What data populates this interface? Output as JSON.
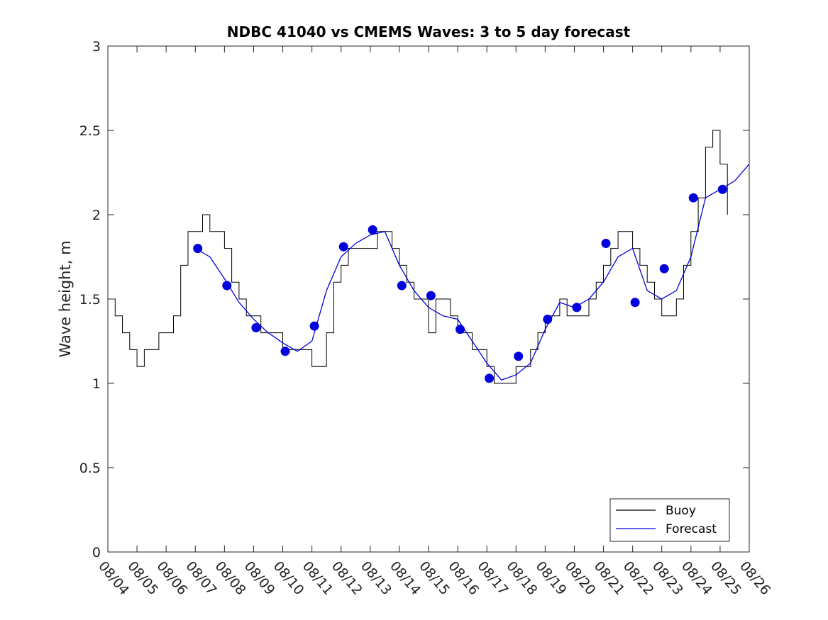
{
  "chart_data": {
    "type": "line",
    "title": "NDBC 41040 vs CMEMS Waves: 3 to 5 day forecast",
    "xlabel": "",
    "ylabel": "Wave height, m",
    "x_axis": {
      "type": "date",
      "range": [
        "08/04",
        "08/26"
      ],
      "tick_labels": [
        "08/04",
        "08/05",
        "08/06",
        "08/07",
        "08/08",
        "08/09",
        "08/10",
        "08/11",
        "08/12",
        "08/13",
        "08/14",
        "08/15",
        "08/16",
        "08/17",
        "08/18",
        "08/19",
        "08/20",
        "08/21",
        "08/22",
        "08/23",
        "08/24",
        "08/25",
        "08/26"
      ]
    },
    "y_axis": {
      "range": [
        0,
        3
      ],
      "ticks": [
        0,
        0.5,
        1,
        1.5,
        2,
        2.5,
        3
      ],
      "tick_labels": [
        "0",
        "0.5",
        "1",
        "1.5",
        "2",
        "2.5",
        "3"
      ]
    },
    "grid": false,
    "legend": {
      "placement": "bottom-right",
      "entries": [
        "Buoy",
        "Forecast"
      ]
    },
    "colors": {
      "Buoy": "#000000",
      "Forecast": "#0000dd"
    },
    "series": [
      {
        "name": "Buoy",
        "style": "step",
        "x": [
          "08/04 00:00",
          "08/04 06:00",
          "08/04 12:00",
          "08/04 18:00",
          "08/05 00:00",
          "08/05 06:00",
          "08/05 12:00",
          "08/05 18:00",
          "08/06 00:00",
          "08/06 06:00",
          "08/06 12:00",
          "08/06 18:00",
          "08/07 00:00",
          "08/07 06:00",
          "08/07 12:00",
          "08/07 18:00",
          "08/08 00:00",
          "08/08 06:00",
          "08/08 12:00",
          "08/08 18:00",
          "08/09 00:00",
          "08/09 06:00",
          "08/09 12:00",
          "08/09 18:00",
          "08/10 00:00",
          "08/10 06:00",
          "08/10 12:00",
          "08/10 18:00",
          "08/11 00:00",
          "08/11 06:00",
          "08/11 12:00",
          "08/11 18:00",
          "08/12 00:00",
          "08/12 06:00",
          "08/12 12:00",
          "08/12 18:00",
          "08/13 00:00",
          "08/13 06:00",
          "08/13 12:00",
          "08/13 18:00",
          "08/14 00:00",
          "08/14 06:00",
          "08/14 12:00",
          "08/14 18:00",
          "08/15 00:00",
          "08/15 06:00",
          "08/15 12:00",
          "08/15 18:00",
          "08/16 00:00",
          "08/16 06:00",
          "08/16 12:00",
          "08/16 18:00",
          "08/17 00:00",
          "08/17 06:00",
          "08/17 12:00",
          "08/17 18:00",
          "08/18 00:00",
          "08/18 06:00",
          "08/18 12:00",
          "08/18 18:00",
          "08/19 00:00",
          "08/19 06:00",
          "08/19 12:00",
          "08/19 18:00",
          "08/20 00:00",
          "08/20 06:00",
          "08/20 12:00",
          "08/20 18:00",
          "08/21 00:00",
          "08/21 06:00",
          "08/21 12:00",
          "08/21 18:00",
          "08/22 00:00",
          "08/22 06:00",
          "08/22 12:00",
          "08/22 18:00",
          "08/23 00:00",
          "08/23 06:00",
          "08/23 12:00",
          "08/23 18:00",
          "08/24 00:00",
          "08/24 06:00",
          "08/24 12:00",
          "08/24 18:00",
          "08/25 00:00",
          "08/25 06:00"
        ],
        "y": [
          1.5,
          1.4,
          1.3,
          1.2,
          1.1,
          1.2,
          1.2,
          1.3,
          1.3,
          1.4,
          1.7,
          1.9,
          1.9,
          2.0,
          1.9,
          1.9,
          1.8,
          1.6,
          1.5,
          1.4,
          1.4,
          1.3,
          1.3,
          1.3,
          1.2,
          1.2,
          1.2,
          1.2,
          1.1,
          1.1,
          1.3,
          1.6,
          1.7,
          1.8,
          1.8,
          1.8,
          1.8,
          1.9,
          1.9,
          1.8,
          1.7,
          1.6,
          1.5,
          1.5,
          1.3,
          1.5,
          1.5,
          1.4,
          1.3,
          1.3,
          1.2,
          1.2,
          1.1,
          1.0,
          1.0,
          1.0,
          1.1,
          1.1,
          1.2,
          1.3,
          1.4,
          1.4,
          1.5,
          1.4,
          1.4,
          1.4,
          1.5,
          1.6,
          1.7,
          1.8,
          1.9,
          1.9,
          1.8,
          1.7,
          1.6,
          1.5,
          1.4,
          1.4,
          1.5,
          1.7,
          1.9,
          2.1,
          2.4,
          2.5,
          2.3,
          2.0
        ]
      },
      {
        "name": "Forecast",
        "style": "line",
        "x": [
          "08/07 00:00",
          "08/07 12:00",
          "08/08 00:00",
          "08/08 12:00",
          "08/09 00:00",
          "08/09 12:00",
          "08/10 00:00",
          "08/10 12:00",
          "08/11 00:00",
          "08/11 12:00",
          "08/12 00:00",
          "08/12 12:00",
          "08/13 00:00",
          "08/13 12:00",
          "08/14 00:00",
          "08/14 12:00",
          "08/15 00:00",
          "08/15 12:00",
          "08/16 00:00",
          "08/16 12:00",
          "08/17 00:00",
          "08/17 12:00",
          "08/18 00:00",
          "08/18 12:00",
          "08/19 00:00",
          "08/19 12:00",
          "08/20 00:00",
          "08/20 12:00",
          "08/21 00:00",
          "08/21 12:00",
          "08/22 00:00",
          "08/22 12:00",
          "08/23 00:00",
          "08/23 12:00",
          "08/24 00:00",
          "08/24 12:00",
          "08/25 00:00",
          "08/25 12:00",
          "08/26 00:00"
        ],
        "y": [
          1.8,
          1.75,
          1.62,
          1.48,
          1.38,
          1.3,
          1.24,
          1.19,
          1.25,
          1.55,
          1.75,
          1.83,
          1.88,
          1.9,
          1.7,
          1.55,
          1.45,
          1.4,
          1.38,
          1.25,
          1.12,
          1.02,
          1.05,
          1.12,
          1.32,
          1.48,
          1.45,
          1.5,
          1.6,
          1.75,
          1.8,
          1.55,
          1.5,
          1.55,
          1.75,
          2.1,
          2.15,
          2.2,
          2.3
        ]
      }
    ],
    "markers": {
      "series": "Forecast",
      "x": [
        "08/07 02:00",
        "08/08 02:00",
        "08/09 02:00",
        "08/10 02:00",
        "08/11 02:00",
        "08/12 02:00",
        "08/13 02:00",
        "08/14 02:00",
        "08/15 02:00",
        "08/16 02:00",
        "08/17 02:00",
        "08/18 02:00",
        "08/19 02:00",
        "08/20 02:00",
        "08/21 02:00",
        "08/22 02:00",
        "08/23 02:00",
        "08/24 02:00",
        "08/25 02:00"
      ],
      "y": [
        1.8,
        1.58,
        1.33,
        1.19,
        1.34,
        1.81,
        1.91,
        1.58,
        1.52,
        1.32,
        1.03,
        1.16,
        1.38,
        1.45,
        1.83,
        1.48,
        1.68,
        2.1,
        2.15
      ]
    }
  }
}
